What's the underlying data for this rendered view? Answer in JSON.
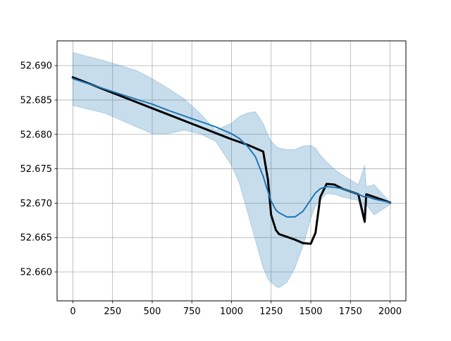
{
  "chart_data": {
    "type": "line",
    "x": [
      0,
      200,
      400,
      500,
      600,
      700,
      800,
      900,
      1000,
      1050,
      1100,
      1150,
      1200,
      1230,
      1250,
      1280,
      1300,
      1350,
      1400,
      1450,
      1500,
      1530,
      1560,
      1600,
      1650,
      1700,
      1800,
      1840,
      1850,
      1900,
      2000
    ],
    "band": {
      "color": "#1f77b4",
      "opacity": 0.25,
      "upper": [
        52.6919,
        52.6907,
        52.6893,
        52.6881,
        52.6867,
        52.6852,
        52.6831,
        52.6806,
        52.6816,
        52.6826,
        52.6831,
        52.6833,
        52.6816,
        52.6799,
        52.679,
        52.6783,
        52.678,
        52.6778,
        52.6778,
        52.6783,
        52.6784,
        52.678,
        52.677,
        52.676,
        52.6749,
        52.6741,
        52.6727,
        52.6755,
        52.6724,
        52.6727,
        52.6701
      ],
      "lower": [
        52.6842,
        52.6831,
        52.6811,
        52.6801,
        52.6801,
        52.6806,
        52.6801,
        52.679,
        52.6755,
        52.6729,
        52.6688,
        52.6647,
        52.6606,
        52.659,
        52.6585,
        52.6579,
        52.6577,
        52.6585,
        52.6606,
        52.6637,
        52.6678,
        52.6696,
        52.6705,
        52.6714,
        52.6713,
        52.6709,
        52.6704,
        52.667,
        52.6698,
        52.6683,
        52.6698
      ]
    },
    "series": [
      {
        "color": "#000000",
        "width": 3,
        "values": [
          52.6883,
          52.6865,
          52.6847,
          52.6838,
          52.6829,
          52.682,
          52.6811,
          52.6802,
          52.6793,
          52.6789,
          52.6785,
          52.678,
          52.6775,
          52.6734,
          52.6683,
          52.6661,
          52.6655,
          52.6651,
          52.6647,
          52.6642,
          52.6641,
          52.6657,
          52.6709,
          52.6728,
          52.6727,
          52.6721,
          52.6713,
          52.6673,
          52.6713,
          52.6709,
          52.6701
        ]
      },
      {
        "color": "#1f77b4",
        "width": 2,
        "values": [
          52.6881,
          52.6866,
          52.6851,
          52.6844,
          52.6835,
          52.6827,
          52.6819,
          52.6811,
          52.6801,
          52.6794,
          52.6783,
          52.6768,
          52.6739,
          52.6717,
          52.6703,
          52.669,
          52.6686,
          52.668,
          52.668,
          52.6688,
          52.6705,
          52.6715,
          52.6721,
          52.6724,
          52.6723,
          52.6721,
          52.6713,
          52.6709,
          52.671,
          52.6706,
          52.6701
        ]
      }
    ],
    "xlim": [
      -100,
      2100
    ],
    "ylim": [
      52.6558,
      52.6936
    ],
    "xticks": [
      0,
      250,
      500,
      750,
      1000,
      1250,
      1500,
      1750,
      2000
    ],
    "yticks": [
      {
        "value": 52.66,
        "label": "52.660"
      },
      52.665,
      {
        "value": 52.67,
        "label": "52.670"
      },
      52.675,
      {
        "value": 52.68,
        "label": "52.680"
      },
      52.685,
      {
        "value": 52.69,
        "label": "52.690"
      }
    ],
    "grid": true
  }
}
